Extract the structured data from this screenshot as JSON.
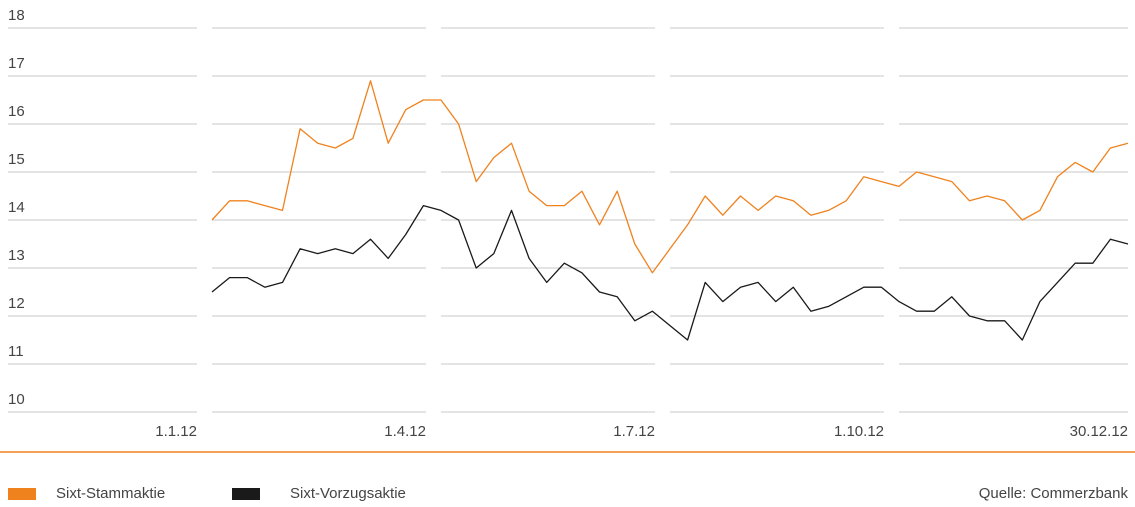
{
  "chart_data": {
    "type": "line",
    "categories": [
      "1.1.12",
      null,
      null,
      null,
      null,
      null,
      null,
      null,
      null,
      null,
      null,
      null,
      null,
      "1.4.12",
      null,
      null,
      null,
      null,
      null,
      null,
      null,
      null,
      null,
      null,
      null,
      null,
      "1.7.12",
      null,
      null,
      null,
      null,
      null,
      null,
      null,
      null,
      null,
      null,
      null,
      null,
      "1.10.12",
      null,
      null,
      null,
      null,
      null,
      null,
      null,
      null,
      null,
      null,
      null,
      null,
      "30.12.12"
    ],
    "series": [
      {
        "name": "Sixt-Stammaktie",
        "color": "#f0821e",
        "values": [
          14.0,
          14.4,
          14.4,
          14.3,
          14.2,
          15.9,
          15.6,
          15.5,
          15.7,
          16.9,
          15.6,
          16.3,
          16.5,
          16.5,
          16.0,
          14.8,
          15.3,
          15.6,
          14.6,
          14.3,
          14.3,
          14.6,
          13.9,
          14.6,
          13.5,
          12.9,
          13.4,
          13.9,
          14.5,
          14.1,
          14.5,
          14.2,
          14.5,
          14.4,
          14.1,
          14.2,
          14.4,
          14.9,
          14.8,
          14.7,
          15.0,
          14.9,
          14.8,
          14.4,
          14.5,
          14.4,
          14.0,
          14.2,
          14.9,
          15.2,
          15.0,
          15.5,
          15.6
        ]
      },
      {
        "name": "Sixt-Vorzugsaktie",
        "color": "#1a1a1a",
        "values": [
          12.5,
          12.8,
          12.8,
          12.6,
          12.7,
          13.4,
          13.3,
          13.4,
          13.3,
          13.6,
          13.2,
          13.7,
          14.3,
          14.2,
          14.0,
          13.0,
          13.3,
          14.2,
          13.2,
          12.7,
          13.1,
          12.9,
          12.5,
          12.4,
          11.9,
          12.1,
          11.8,
          11.5,
          12.7,
          12.3,
          12.6,
          12.7,
          12.3,
          12.6,
          12.1,
          12.2,
          12.4,
          12.6,
          12.6,
          12.3,
          12.1,
          12.1,
          12.4,
          12.0,
          11.9,
          11.9,
          11.5,
          12.3,
          12.7,
          13.1,
          13.1,
          13.6,
          13.5
        ]
      }
    ],
    "ylim": [
      10,
      18
    ],
    "yticks": [
      10,
      11,
      12,
      13,
      14,
      15,
      16,
      17,
      18
    ],
    "grid": true,
    "source": "Quelle: Commerzbank"
  }
}
